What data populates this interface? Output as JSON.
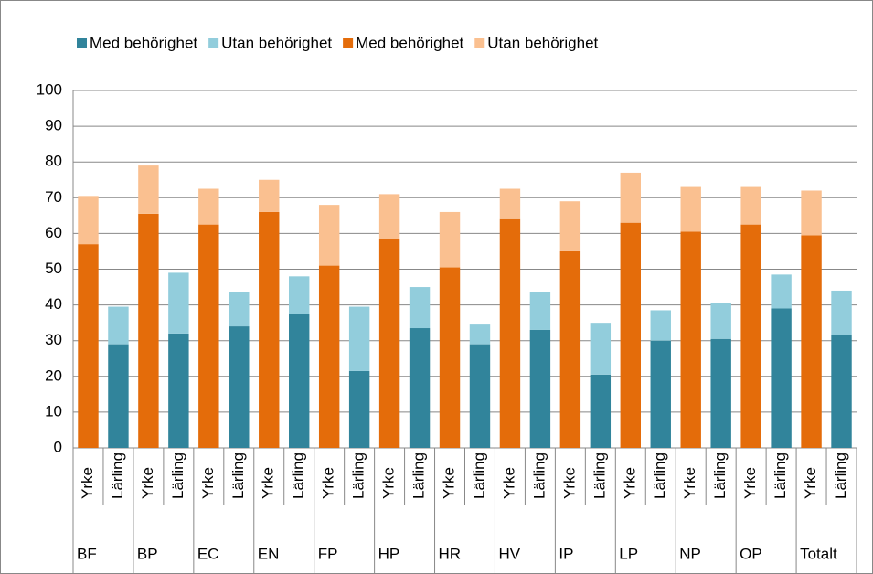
{
  "chart_data": {
    "type": "stacked_bar",
    "categories": [
      "Yrke",
      "Lärling",
      "Yrke",
      "Lärling",
      "Yrke",
      "Lärling",
      "Yrke",
      "Lärling",
      "Yrke",
      "Lärling",
      "Yrke",
      "Lärling",
      "Yrke",
      "Lärling",
      "Yrke",
      "Lärling",
      "Yrke",
      "Lärling",
      "Yrke",
      "Lärling",
      "Yrke",
      "Lärling",
      "Yrke",
      "Lärling",
      "Yrke",
      "Lärling"
    ],
    "groups": [
      "BF",
      "BP",
      "EC",
      "EN",
      "FP",
      "HP",
      "HR",
      "HV",
      "IP",
      "LP",
      "NP",
      "OP",
      "Totalt"
    ],
    "series": [
      {
        "name": "Med behörighet",
        "color": "#31849b",
        "values": [
          null,
          29,
          null,
          32,
          null,
          34,
          null,
          37.5,
          null,
          21.5,
          null,
          33.5,
          null,
          29,
          null,
          33,
          null,
          20.5,
          null,
          30,
          null,
          30.5,
          null,
          39,
          null,
          31.5
        ]
      },
      {
        "name": "Utan behörighet",
        "color": "#92cddc",
        "values": [
          null,
          10.5,
          null,
          17,
          null,
          9.5,
          null,
          10.5,
          null,
          18,
          null,
          11.5,
          null,
          5.5,
          null,
          10.5,
          null,
          14.5,
          null,
          8.5,
          null,
          10,
          null,
          9.5,
          null,
          12.5
        ]
      },
      {
        "name": "Med behörighet",
        "color": "#e46c0a",
        "values": [
          57,
          null,
          65.5,
          null,
          62.5,
          null,
          66,
          null,
          51,
          null,
          58.5,
          null,
          50.5,
          null,
          64,
          null,
          55,
          null,
          63,
          null,
          60.5,
          null,
          62.5,
          null,
          59.5,
          null
        ]
      },
      {
        "name": "Utan behörighet",
        "color": "#fac090",
        "values": [
          13.5,
          null,
          13.5,
          null,
          10,
          null,
          9,
          null,
          17,
          null,
          12.5,
          null,
          15.5,
          null,
          8.5,
          null,
          14,
          null,
          14,
          null,
          12.5,
          null,
          10.5,
          null,
          12.5,
          null
        ]
      }
    ],
    "ylim": [
      0,
      100
    ],
    "yticks": [
      0,
      10,
      20,
      30,
      40,
      50,
      60,
      70,
      80,
      90,
      100
    ],
    "grid": true
  }
}
